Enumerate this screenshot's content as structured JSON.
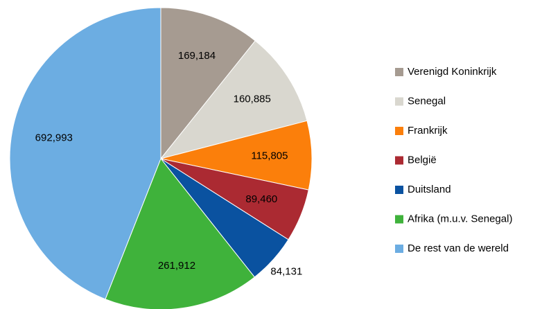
{
  "chart_data": {
    "type": "pie",
    "categories": [
      "Verenigd Koninkrijk",
      "Senegal",
      "Frankrijk",
      "België",
      "Duitsland",
      "Afrika (m.u.v. Senegal)",
      "De rest van de wereld"
    ],
    "values": [
      169184,
      160885,
      115805,
      89460,
      84131,
      261912,
      692993
    ],
    "value_labels": [
      "169,184",
      "160,885",
      "115,805",
      "89,460",
      "84,131",
      "261,912",
      "692,993"
    ],
    "colors": [
      "#a69b91",
      "#d9d7cf",
      "#fb7f0b",
      "#ab2a32",
      "#0a52a0",
      "#3fb23b",
      "#6cade2"
    ],
    "legend": "right"
  }
}
